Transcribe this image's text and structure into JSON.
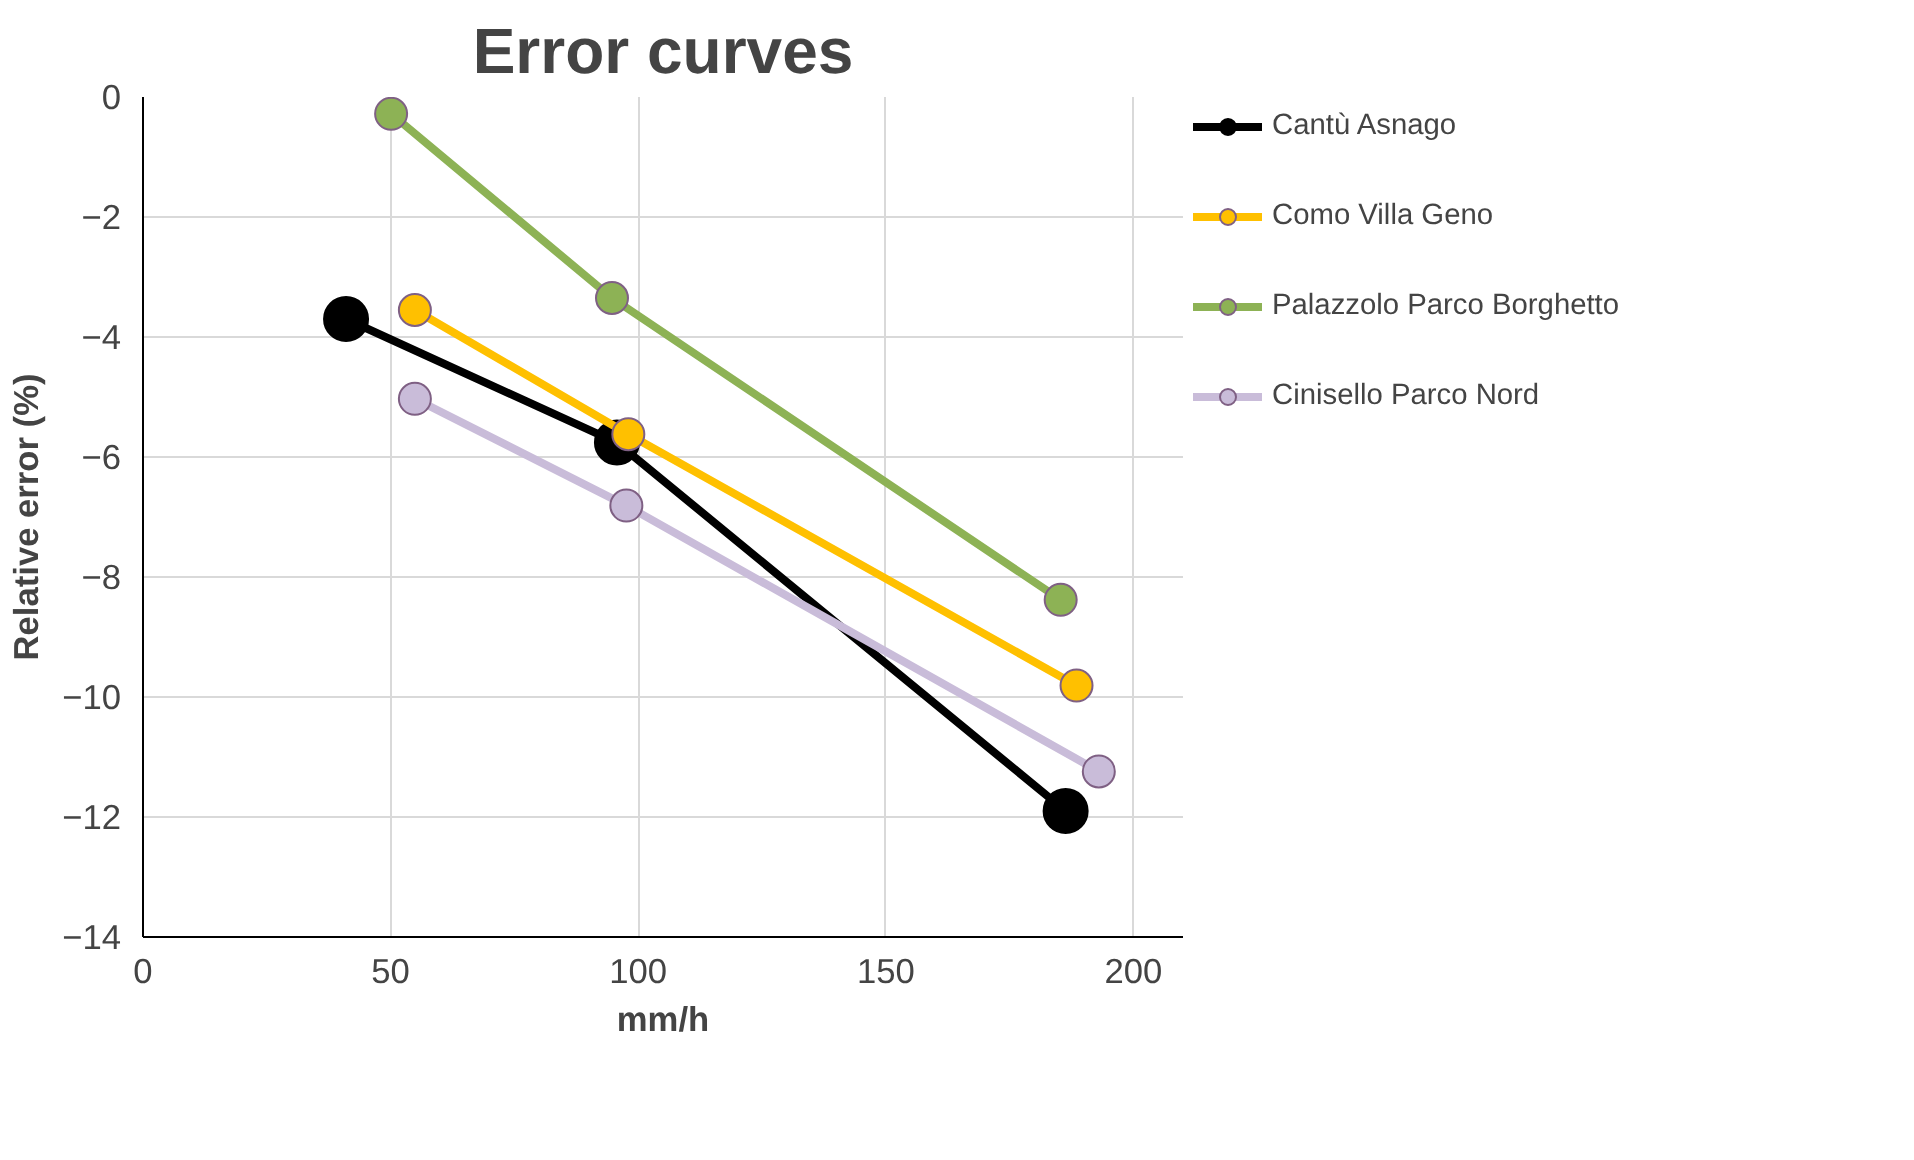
{
  "chart_data": {
    "type": "line",
    "title": "Error curves",
    "xlabel": "mm/h",
    "ylabel": "Relative error (%)",
    "xlim": [
      0,
      210
    ],
    "ylim": [
      -14,
      0
    ],
    "xticks": [
      0,
      50,
      100,
      150,
      200
    ],
    "yticks": [
      -14,
      -12,
      -10,
      -8,
      -6,
      -4,
      -2,
      0
    ],
    "grid": true,
    "legend": "right",
    "marker": "circle",
    "line_style": "solid",
    "series": [
      {
        "name": "Cantù Asnago",
        "color": "#000000",
        "x": [
          41,
          95.7,
          186.3
        ],
        "values": [
          -3.7,
          -5.76,
          -11.9
        ]
      },
      {
        "name": "Como Villa Geno",
        "color": "#ffc000",
        "x": [
          54.9,
          98,
          188.5
        ],
        "values": [
          -3.55,
          -5.62,
          -9.81
        ]
      },
      {
        "name": "Palazzolo Parco Borghetto",
        "color": "#8db255",
        "x": [
          50.1,
          94.7,
          185.3
        ],
        "values": [
          -0.28,
          -3.35,
          -8.38
        ]
      },
      {
        "name": "Cinisello Parco Nord",
        "color": "#c9bcd9",
        "x": [
          54.9,
          97.6,
          193
        ],
        "values": [
          -5.03,
          -6.81,
          -11.24
        ]
      }
    ]
  }
}
